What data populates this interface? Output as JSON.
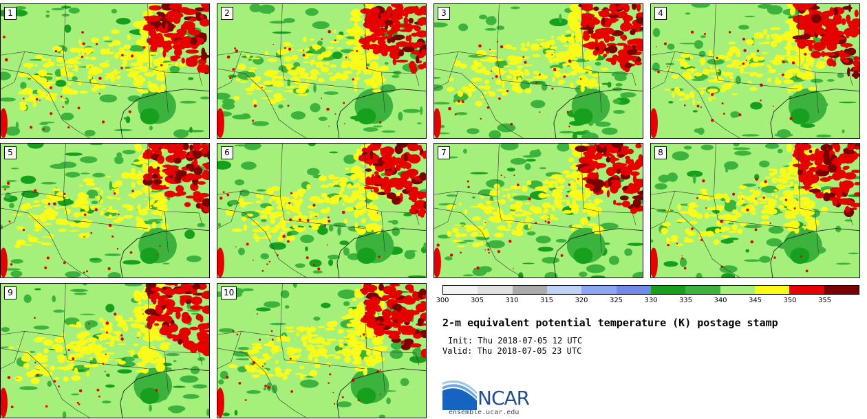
{
  "panels": [
    {
      "label": "1"
    },
    {
      "label": "2"
    },
    {
      "label": "3"
    },
    {
      "label": "4"
    },
    {
      "label": "5"
    },
    {
      "label": "6"
    },
    {
      "label": "7"
    },
    {
      "label": "8"
    },
    {
      "label": "9"
    },
    {
      "label": "10"
    }
  ],
  "colorbar": {
    "tick_labels": [
      "300",
      "305",
      "310",
      "315",
      "320",
      "325",
      "330",
      "335",
      "340",
      "345",
      "350",
      "355"
    ],
    "colors": [
      "#f3f3f3",
      "#e0e0e0",
      "#ababab",
      "#bcd2f7",
      "#8ba7f1",
      "#6f8ae8",
      "#16a01e",
      "#3cb33c",
      "#a5f07a",
      "#fbfb1a",
      "#e60000",
      "#7a0000"
    ]
  },
  "title": "2-m equivalent potential temperature (K) postage stamp",
  "init": "Init: Thu 2018-07-05 12 UTC",
  "valid": "Valid: Thu 2018-07-05 23 UTC",
  "logo": {
    "name": "NCAR",
    "url": "ensemble.ucar.edu"
  },
  "map_colors": {
    "base": "#a5f07a",
    "green": "#3cb33c",
    "dark_green": "#16a01e",
    "yellow": "#fbfb1a",
    "red": "#e60000",
    "dark_red": "#7a0000"
  }
}
